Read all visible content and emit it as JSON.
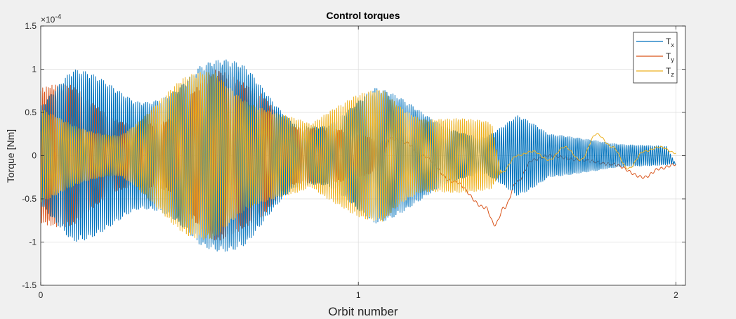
{
  "chart_data": {
    "type": "line",
    "title": "Control torques",
    "xlabel": "Orbit number",
    "ylabel": "Torque [Nm]",
    "exponent_label": "×10",
    "exponent_power": "-4",
    "xlim": [
      0,
      2.03
    ],
    "ylim": [
      -1.5,
      1.5
    ],
    "y_scale_factor": 0.0001,
    "xticks": [
      0,
      1,
      2
    ],
    "xtick_labels": [
      "0",
      "1",
      "2"
    ],
    "yticks": [
      -1.5,
      -1,
      -0.5,
      0,
      0.5,
      1,
      1.5
    ],
    "ytick_labels": [
      "-1.5",
      "-1",
      "-0.5",
      "0",
      "0.5",
      "1",
      "1.5"
    ],
    "grid": true,
    "legend_position": "top-right",
    "series": [
      {
        "name": "T",
        "subscript": "x",
        "color": "#0072BD",
        "envelope": [
          [
            0.0,
            0.7
          ],
          [
            0.1,
            1.0
          ],
          [
            0.3,
            0.9
          ],
          [
            0.5,
            1.2
          ],
          [
            0.65,
            1.05
          ],
          [
            0.8,
            0.55
          ],
          [
            0.9,
            0.5
          ],
          [
            1.05,
            0.8
          ],
          [
            1.2,
            0.6
          ],
          [
            1.4,
            0.3
          ],
          [
            1.5,
            0.5
          ],
          [
            1.6,
            0.25
          ],
          [
            1.75,
            0.25
          ],
          [
            2.0,
            0.1
          ]
        ],
        "samples": [
          [
            1.42,
            -0.55
          ],
          [
            1.47,
            0.0
          ],
          [
            1.5,
            0.5
          ],
          [
            1.54,
            0.05
          ],
          [
            1.58,
            -0.15
          ],
          [
            1.62,
            0.22
          ],
          [
            1.66,
            -0.25
          ],
          [
            1.7,
            0.05
          ],
          [
            1.74,
            0.25
          ],
          [
            1.78,
            -0.05
          ],
          [
            1.82,
            -0.12
          ],
          [
            1.86,
            0.05
          ],
          [
            1.9,
            0.02
          ],
          [
            1.94,
            -0.07
          ],
          [
            2.0,
            -0.1
          ]
        ]
      },
      {
        "name": "T",
        "subscript": "y",
        "color": "#D95319",
        "envelope": [
          [
            0.0,
            0.8
          ],
          [
            0.1,
            0.85
          ],
          [
            0.25,
            0.6
          ],
          [
            0.4,
            0.5
          ],
          [
            0.55,
            1.0
          ],
          [
            0.7,
            1.0
          ],
          [
            0.8,
            0.5
          ],
          [
            1.0,
            0.25
          ],
          [
            1.1,
            0.15
          ]
        ],
        "samples": [
          [
            1.1,
            0.2
          ],
          [
            1.15,
            0.15
          ],
          [
            1.2,
            0.0
          ],
          [
            1.3,
            -0.3
          ],
          [
            1.4,
            -0.6
          ],
          [
            1.43,
            -0.8
          ],
          [
            1.46,
            -0.6
          ],
          [
            1.5,
            -0.3
          ],
          [
            1.55,
            -0.05
          ],
          [
            1.6,
            0.0
          ],
          [
            1.7,
            -0.05
          ],
          [
            1.8,
            -0.1
          ],
          [
            1.9,
            -0.25
          ],
          [
            1.95,
            -0.15
          ],
          [
            2.0,
            -0.1
          ]
        ]
      },
      {
        "name": "T",
        "subscript": "z",
        "color": "#EDB120",
        "envelope": [
          [
            0.0,
            0.55
          ],
          [
            0.1,
            0.45
          ],
          [
            0.25,
            0.35
          ],
          [
            0.45,
            0.9
          ],
          [
            0.55,
            1.1
          ],
          [
            0.7,
            0.85
          ],
          [
            0.85,
            0.4
          ],
          [
            0.95,
            0.6
          ],
          [
            1.08,
            1.0
          ],
          [
            1.2,
            0.65
          ],
          [
            1.35,
            0.45
          ],
          [
            1.45,
            0.35
          ]
        ],
        "samples": [
          [
            1.45,
            -0.2
          ],
          [
            1.5,
            0.0
          ],
          [
            1.55,
            0.05
          ],
          [
            1.6,
            -0.05
          ],
          [
            1.65,
            0.1
          ],
          [
            1.7,
            -0.05
          ],
          [
            1.75,
            0.25
          ],
          [
            1.8,
            0.1
          ],
          [
            1.85,
            -0.15
          ],
          [
            1.9,
            0.05
          ],
          [
            1.95,
            0.1
          ],
          [
            2.0,
            0.03
          ]
        ]
      }
    ]
  }
}
